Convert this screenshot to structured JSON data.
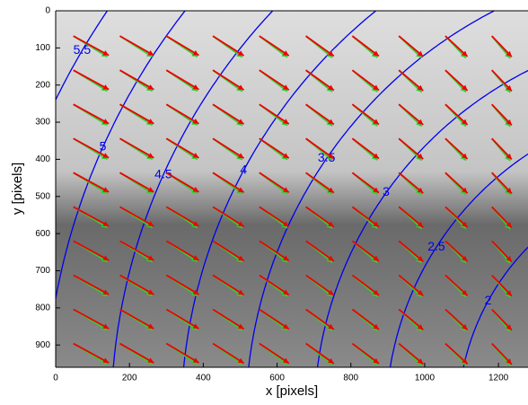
{
  "chart_data": {
    "type": "quiver",
    "xlabel": "x [pixels]",
    "ylabel": "y [pixels]",
    "xlim": [
      0,
      1280
    ],
    "ylim": [
      0,
      960
    ],
    "y_reversed": true,
    "xticks": [
      0,
      200,
      400,
      600,
      800,
      1000,
      1200
    ],
    "yticks": [
      0,
      100,
      200,
      300,
      400,
      500,
      600,
      700,
      800,
      900
    ],
    "x": [
      48,
      174,
      300,
      426,
      552,
      678,
      804,
      930,
      1056,
      1182
    ],
    "y": [
      68,
      160,
      252,
      344,
      436,
      528,
      620,
      712,
      804,
      896
    ],
    "series": [
      {
        "color": "#33cc33",
        "u": [
          92,
          88,
          84,
          80,
          76,
          72,
          68,
          62,
          56,
          50
        ],
        "v": [
          56,
          56,
          56,
          57,
          57,
          58,
          58,
          59,
          59,
          60
        ]
      },
      {
        "color": "#ee0000",
        "u": [
          96,
          92,
          88,
          84,
          80,
          76,
          72,
          66,
          60,
          54
        ],
        "v": [
          52,
          52,
          52,
          53,
          53,
          54,
          54,
          55,
          55,
          56
        ]
      }
    ],
    "contours": {
      "color": "#0000ee",
      "center": [
        1750,
        1100
      ],
      "levels": [
        5.5,
        5,
        4.5,
        4,
        3.5,
        3,
        2.5,
        2
      ],
      "radii": [
        1950,
        1780,
        1600,
        1410,
        1235,
        1050,
        855,
        660
      ]
    }
  }
}
